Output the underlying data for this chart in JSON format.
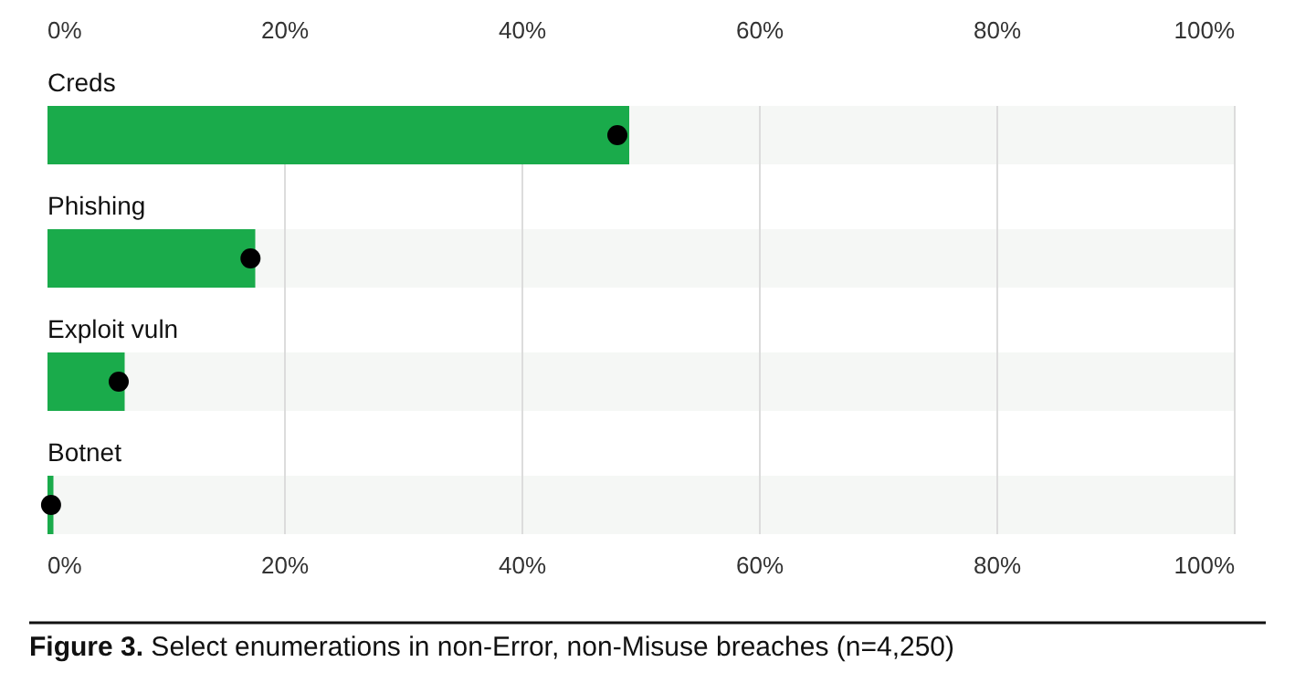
{
  "chart_data": {
    "type": "bar",
    "orientation": "horizontal",
    "title": "Figure 3. Select enumerations in non-Error, non-Misuse breaches (n=4,250)",
    "categories": [
      "Creds",
      "Phishing",
      "Exploit vuln",
      "Botnet"
    ],
    "series": [
      {
        "color": "#1aab4b",
        "values": [
          49,
          17.5,
          6.5,
          0.5
        ]
      },
      {
        "type": "scatter",
        "color": "#000000",
        "values": [
          48,
          17.1,
          6,
          0.3
        ]
      }
    ],
    "xlim": [
      0,
      100
    ],
    "xticks": [
      {
        "value": 0,
        "label": "0%"
      },
      {
        "value": 20,
        "label": "20%"
      },
      {
        "value": 40,
        "label": "40%"
      },
      {
        "value": 60,
        "label": "60%"
      },
      {
        "value": 80,
        "label": "80%"
      },
      {
        "value": 100,
        "label": "100%"
      }
    ],
    "x2lim": [
      0,
      100
    ],
    "x2ticks": [
      {
        "value": 0,
        "label": "0%"
      },
      {
        "value": 20,
        "label": "20%"
      },
      {
        "value": 40,
        "label": "40%"
      },
      {
        "value": 60,
        "label": "60%"
      },
      {
        "value": 80,
        "label": "80%"
      },
      {
        "value": 100,
        "label": "100%"
      }
    ],
    "grid": "x",
    "marker": "circle"
  }
}
